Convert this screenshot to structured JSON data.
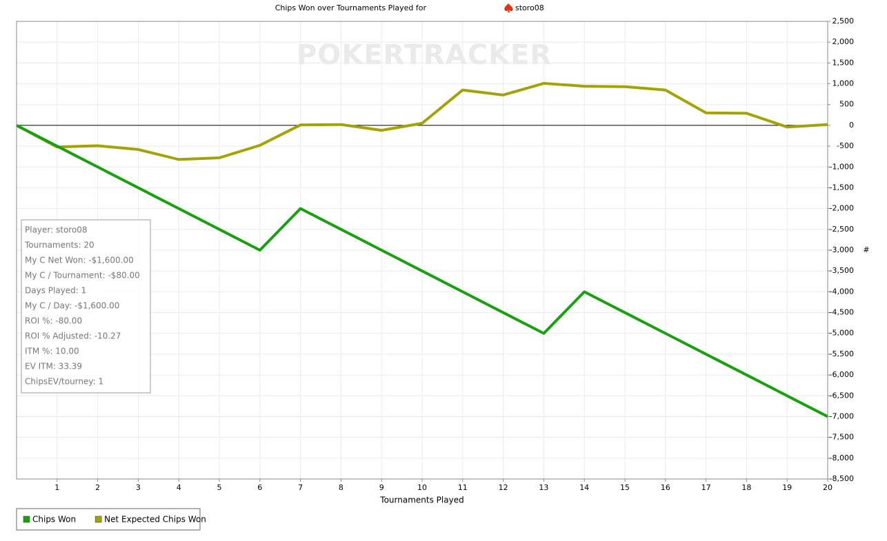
{
  "chart_data": {
    "type": "line",
    "title": "Chips Won over Tournaments Played for",
    "player": "storo08",
    "watermark": "POKERTRACKER",
    "x_label": "Tournaments Played",
    "y_label": "#",
    "x": [
      0,
      1,
      2,
      3,
      4,
      5,
      6,
      7,
      8,
      9,
      10,
      11,
      12,
      13,
      14,
      15,
      16,
      17,
      18,
      19,
      20
    ],
    "xlim": [
      0,
      20
    ],
    "xticks": [
      1,
      2,
      3,
      4,
      5,
      6,
      7,
      8,
      9,
      10,
      11,
      12,
      13,
      14,
      15,
      16,
      17,
      18,
      19,
      20
    ],
    "ylim": [
      -8500,
      2500
    ],
    "yticks": [
      {
        "value": -8500,
        "label": "-8,500"
      },
      {
        "value": -8000,
        "label": "-8,000"
      },
      {
        "value": -7500,
        "label": "-7,500"
      },
      {
        "value": -7000,
        "label": "-7,000"
      },
      {
        "value": -6500,
        "label": "-6,500"
      },
      {
        "value": -6000,
        "label": "-6,000"
      },
      {
        "value": -5500,
        "label": "-5,500"
      },
      {
        "value": -5000,
        "label": "-5,000"
      },
      {
        "value": -4500,
        "label": "-4,500"
      },
      {
        "value": -4000,
        "label": "-4,000"
      },
      {
        "value": -3500,
        "label": "-3,500"
      },
      {
        "value": -3000,
        "label": "-3,000"
      },
      {
        "value": -2500,
        "label": "-2,500"
      },
      {
        "value": -2000,
        "label": "-2,000"
      },
      {
        "value": -1500,
        "label": "-1,500"
      },
      {
        "value": -1000,
        "label": "-1,000"
      },
      -500,
      0,
      500,
      {
        "value": 1000,
        "label": "1,000"
      },
      {
        "value": 1500,
        "label": "1,500"
      },
      {
        "value": 2000,
        "label": "2,000"
      },
      {
        "value": 2500,
        "label": "2,500"
      }
    ],
    "grid": true,
    "series": [
      {
        "name": "Chips Won",
        "color": "#19a00f",
        "values": [
          0,
          -500,
          -1000,
          -1500,
          -2000,
          -2500,
          -3000,
          -2000,
          -2500,
          -3000,
          -3500,
          -4000,
          -4500,
          -5000,
          -4000,
          -4500,
          -5000,
          -5500,
          -6000,
          -6500,
          -7000
        ]
      },
      {
        "name": "Net Expected Chips Won",
        "color": "#a3a300",
        "values": [
          0,
          -520,
          -490,
          -580,
          -820,
          -780,
          -480,
          10,
          20,
          -120,
          50,
          850,
          730,
          1010,
          940,
          930,
          850,
          300,
          290,
          -40,
          20
        ]
      }
    ],
    "stats": [
      "Player: storo08",
      "Tournaments: 20",
      "My C Net Won: -$1,600.00",
      "My C / Tournament: -$80.00",
      "Days Played: 1",
      "My C / Day: -$1,600.00",
      "ROI %: -80.00",
      "ROI % Adjusted: -10.27",
      "ITM %: 10.00",
      "EV ITM: 33.39",
      "ChipsEV/tourney: 1"
    ]
  }
}
